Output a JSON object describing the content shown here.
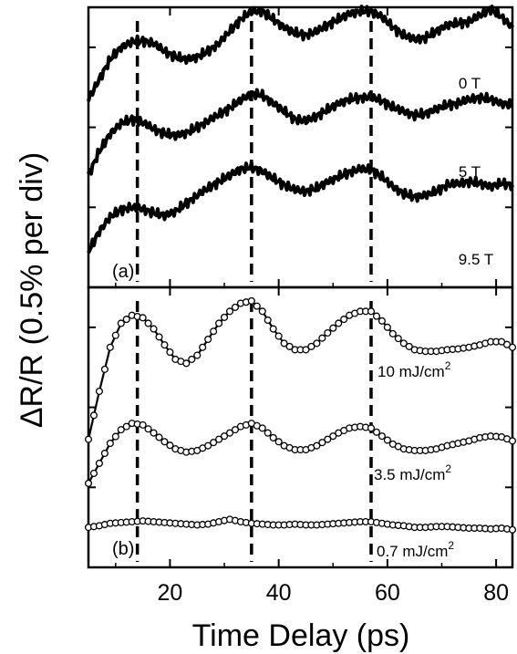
{
  "chart_data": {
    "type": "line",
    "xlabel": "Time Delay (ps)",
    "ylabel": "ΔR/R (0.5% per div)",
    "xlim": [
      5,
      83
    ],
    "x_ticks": [
      "20",
      "40",
      "60",
      "80"
    ],
    "x_tick_values": [
      20,
      40,
      60,
      80
    ],
    "grid": false,
    "vertical_markers_ps": [
      14,
      35,
      57
    ],
    "panels": [
      {
        "label": "(a)",
        "ylim": [
          0,
          3.5
        ],
        "series": [
          {
            "name": "0 T",
            "x": [
              5,
              7,
              9,
              11,
              13,
              15,
              17,
              19,
              21,
              23,
              25,
              27,
              29,
              31,
              33,
              35,
              37,
              39,
              41,
              43,
              45,
              47,
              49,
              51,
              53,
              55,
              57,
              59,
              61,
              63,
              65,
              67,
              69,
              71,
              73,
              75,
              77,
              79,
              81,
              83
            ],
            "values": [
              2.35,
              2.6,
              2.85,
              3.0,
              3.07,
              3.08,
              3.05,
              2.95,
              2.88,
              2.85,
              2.88,
              2.95,
              3.05,
              3.2,
              3.35,
              3.45,
              3.45,
              3.35,
              3.25,
              3.18,
              3.15,
              3.2,
              3.28,
              3.35,
              3.42,
              3.45,
              3.45,
              3.38,
              3.25,
              3.15,
              3.1,
              3.12,
              3.2,
              3.28,
              3.3,
              3.32,
              3.4,
              3.48,
              3.38,
              3.25
            ]
          },
          {
            "name": "5 T",
            "x": [
              5,
              7,
              9,
              11,
              13,
              15,
              17,
              19,
              21,
              23,
              25,
              27,
              29,
              31,
              33,
              35,
              37,
              39,
              41,
              43,
              45,
              47,
              49,
              51,
              53,
              55,
              57,
              59,
              61,
              63,
              65,
              67,
              69,
              71,
              73,
              75,
              77,
              79,
              81,
              83
            ],
            "values": [
              1.4,
              1.7,
              1.92,
              2.05,
              2.1,
              2.06,
              1.98,
              1.92,
              1.9,
              1.93,
              2.0,
              2.08,
              2.16,
              2.24,
              2.34,
              2.42,
              2.4,
              2.3,
              2.2,
              2.1,
              2.08,
              2.14,
              2.22,
              2.3,
              2.35,
              2.37,
              2.38,
              2.33,
              2.25,
              2.2,
              2.15,
              2.17,
              2.23,
              2.28,
              2.3,
              2.35,
              2.37,
              2.35,
              2.3,
              2.28
            ]
          },
          {
            "name": "9.5 T",
            "x": [
              5,
              7,
              9,
              11,
              13,
              15,
              17,
              19,
              21,
              23,
              25,
              27,
              29,
              31,
              33,
              35,
              37,
              39,
              41,
              43,
              45,
              47,
              49,
              51,
              53,
              55,
              57,
              59,
              61,
              63,
              65,
              67,
              69,
              71,
              73,
              75,
              77,
              79,
              81,
              83
            ],
            "values": [
              0.45,
              0.7,
              0.88,
              0.97,
              1.0,
              0.98,
              0.93,
              0.9,
              0.95,
              1.05,
              1.15,
              1.24,
              1.32,
              1.4,
              1.48,
              1.5,
              1.45,
              1.36,
              1.28,
              1.22,
              1.2,
              1.24,
              1.32,
              1.38,
              1.44,
              1.48,
              1.47,
              1.38,
              1.26,
              1.17,
              1.13,
              1.15,
              1.2,
              1.28,
              1.3,
              1.32,
              1.3,
              1.26,
              1.3,
              1.28
            ]
          }
        ],
        "annotations": [
          "0 T",
          "5 T",
          "9.5 T"
        ]
      },
      {
        "label": "(b)",
        "ylim": [
          0,
          3.5
        ],
        "series": [
          {
            "name": "10 mJ/cm²",
            "x": [
              5,
              7,
              9,
              11,
              13,
              15,
              17,
              19,
              21,
              23,
              25,
              27,
              29,
              31,
              33,
              35,
              37,
              39,
              41,
              43,
              45,
              47,
              49,
              51,
              53,
              55,
              57,
              59,
              61,
              63,
              65,
              67,
              69,
              71,
              73,
              75,
              77,
              79,
              81,
              83
            ],
            "values": [
              1.6,
              2.2,
              2.75,
              3.05,
              3.15,
              3.12,
              2.98,
              2.78,
              2.6,
              2.55,
              2.65,
              2.85,
              3.05,
              3.2,
              3.3,
              3.33,
              3.2,
              2.98,
              2.8,
              2.72,
              2.72,
              2.8,
              2.93,
              3.05,
              3.15,
              3.2,
              3.2,
              3.08,
              2.92,
              2.8,
              2.72,
              2.7,
              2.7,
              2.72,
              2.73,
              2.75,
              2.78,
              2.82,
              2.82,
              2.75
            ]
          },
          {
            "name": "3.5 mJ/cm²",
            "x": [
              5,
              7,
              9,
              11,
              13,
              15,
              17,
              19,
              21,
              23,
              25,
              27,
              29,
              31,
              33,
              35,
              37,
              39,
              41,
              43,
              45,
              47,
              49,
              51,
              53,
              55,
              57,
              59,
              61,
              63,
              65,
              67,
              69,
              71,
              73,
              75,
              77,
              79,
              81,
              83
            ],
            "values": [
              1.05,
              1.3,
              1.55,
              1.72,
              1.8,
              1.78,
              1.68,
              1.57,
              1.48,
              1.44,
              1.46,
              1.52,
              1.6,
              1.68,
              1.76,
              1.8,
              1.74,
              1.62,
              1.52,
              1.47,
              1.47,
              1.52,
              1.6,
              1.68,
              1.74,
              1.76,
              1.74,
              1.64,
              1.54,
              1.48,
              1.46,
              1.46,
              1.48,
              1.52,
              1.55,
              1.58,
              1.62,
              1.64,
              1.63,
              1.58
            ]
          },
          {
            "name": "0.7 mJ/cm²",
            "x": [
              5,
              7,
              9,
              11,
              13,
              15,
              17,
              19,
              21,
              23,
              25,
              27,
              29,
              31,
              33,
              35,
              37,
              39,
              41,
              43,
              45,
              47,
              49,
              51,
              53,
              55,
              57,
              59,
              61,
              63,
              65,
              67,
              69,
              71,
              73,
              75,
              77,
              79,
              81,
              83
            ],
            "values": [
              0.5,
              0.52,
              0.55,
              0.56,
              0.57,
              0.58,
              0.57,
              0.56,
              0.55,
              0.54,
              0.53,
              0.54,
              0.57,
              0.6,
              0.57,
              0.55,
              0.54,
              0.53,
              0.53,
              0.54,
              0.53,
              0.53,
              0.54,
              0.55,
              0.56,
              0.57,
              0.57,
              0.55,
              0.53,
              0.52,
              0.5,
              0.5,
              0.51,
              0.51,
              0.5,
              0.49,
              0.49,
              0.48,
              0.49,
              0.47
            ]
          }
        ],
        "annotations": [
          "10 mJ/cm",
          "3.5 mJ/cm",
          "0.7 mJ/cm"
        ],
        "annotation_superscript": "2"
      }
    ]
  }
}
